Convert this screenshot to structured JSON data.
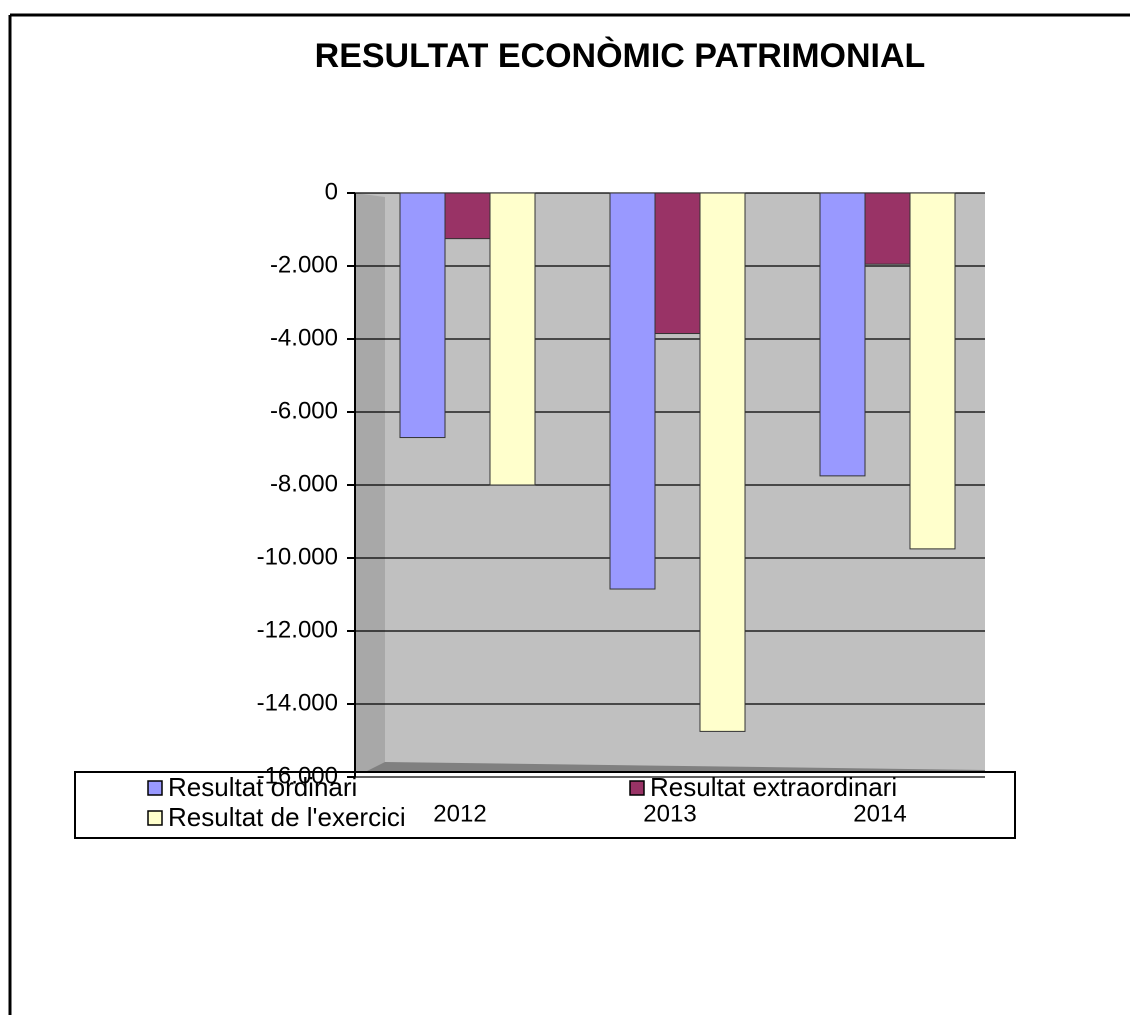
{
  "chart_data": {
    "type": "bar",
    "title": "RESULTAT ECONÒMIC PATRIMONIAL",
    "categories": [
      "2012",
      "2013",
      "2014"
    ],
    "series": [
      {
        "name": "Resultat ordinari",
        "color": "#9999ff",
        "values": [
          -6700,
          -10850,
          -7750
        ]
      },
      {
        "name": "Resultat extraordinari",
        "color": "#993366",
        "values": [
          -1250,
          -3850,
          -1950
        ]
      },
      {
        "name": "Resultat de l'exercici",
        "color": "#ffffcc",
        "values": [
          -8000,
          -14750,
          -9750
        ]
      }
    ],
    "ylim": [
      -16000,
      0
    ],
    "yticks": [
      0,
      {
        "value": -2000,
        "label": "-2.000"
      },
      {
        "value": -4000,
        "label": "-4.000"
      },
      {
        "value": -6000,
        "label": "-6.000"
      },
      {
        "value": -8000,
        "label": "-8.000"
      },
      {
        "value": -10000,
        "label": "-10.000"
      },
      {
        "value": -12000,
        "label": "-12.000"
      },
      {
        "value": -14000,
        "label": "-14.000"
      },
      {
        "value": -16000,
        "label": "-16.000"
      }
    ],
    "grid": true,
    "legend": "bottom"
  }
}
